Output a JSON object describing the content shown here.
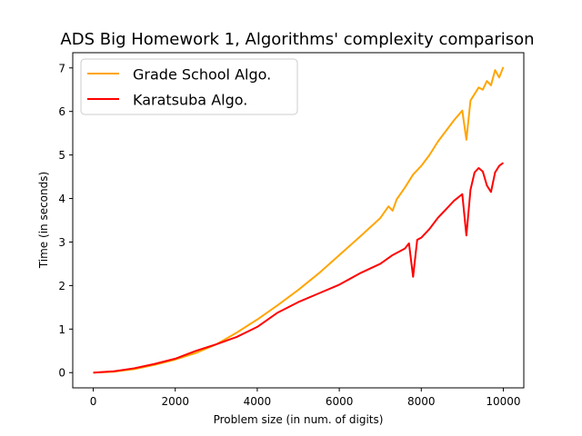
{
  "chart_data": {
    "type": "line",
    "title": "ADS Big Homework 1, Algorithms' complexity comparison",
    "xlabel": "Problem size (in num. of digits)",
    "ylabel": "Time (in seconds)",
    "xlim": [
      -500,
      10500
    ],
    "ylim": [
      -0.35,
      7.35
    ],
    "xticks": [
      0,
      2000,
      4000,
      6000,
      8000,
      10000
    ],
    "yticks": [
      0,
      1,
      2,
      3,
      4,
      5,
      6,
      7
    ],
    "xtick_labels": [
      "0",
      "2000",
      "4000",
      "6000",
      "8000",
      "10000"
    ],
    "ytick_labels": [
      "0",
      "1",
      "2",
      "3",
      "4",
      "5",
      "6",
      "7"
    ],
    "grid": false,
    "legend_position": "top-left",
    "series": [
      {
        "name": "Grade School Algo.",
        "color": "#ffa500",
        "x": [
          0,
          500,
          1000,
          1500,
          2000,
          2500,
          3000,
          3500,
          4000,
          4500,
          5000,
          5500,
          6000,
          6500,
          7000,
          7200,
          7300,
          7400,
          7600,
          7800,
          8000,
          8200,
          8400,
          8600,
          8800,
          9000,
          9100,
          9200,
          9400,
          9500,
          9600,
          9700,
          9800,
          9900,
          10000
        ],
        "y": [
          0,
          0.02,
          0.08,
          0.18,
          0.3,
          0.45,
          0.65,
          0.92,
          1.22,
          1.55,
          1.9,
          2.28,
          2.7,
          3.12,
          3.55,
          3.82,
          3.72,
          3.98,
          4.25,
          4.55,
          4.75,
          5.0,
          5.3,
          5.55,
          5.8,
          6.02,
          5.35,
          6.25,
          6.55,
          6.5,
          6.7,
          6.6,
          6.95,
          6.78,
          7.02
        ]
      },
      {
        "name": "Karatsuba Algo.",
        "color": "#ff0000",
        "x": [
          0,
          500,
          1000,
          1500,
          2000,
          2500,
          3000,
          3500,
          4000,
          4500,
          5000,
          5500,
          6000,
          6500,
          7000,
          7300,
          7600,
          7700,
          7800,
          7900,
          8000,
          8200,
          8400,
          8600,
          8800,
          9000,
          9100,
          9200,
          9300,
          9400,
          9500,
          9600,
          9700,
          9800,
          9900,
          10000
        ],
        "y": [
          0,
          0.03,
          0.1,
          0.2,
          0.32,
          0.5,
          0.65,
          0.82,
          1.05,
          1.38,
          1.62,
          1.82,
          2.02,
          2.28,
          2.5,
          2.7,
          2.85,
          2.97,
          2.2,
          3.05,
          3.1,
          3.3,
          3.55,
          3.75,
          3.95,
          4.1,
          3.15,
          4.2,
          4.6,
          4.7,
          4.62,
          4.3,
          4.15,
          4.6,
          4.75,
          4.82
        ]
      }
    ]
  }
}
